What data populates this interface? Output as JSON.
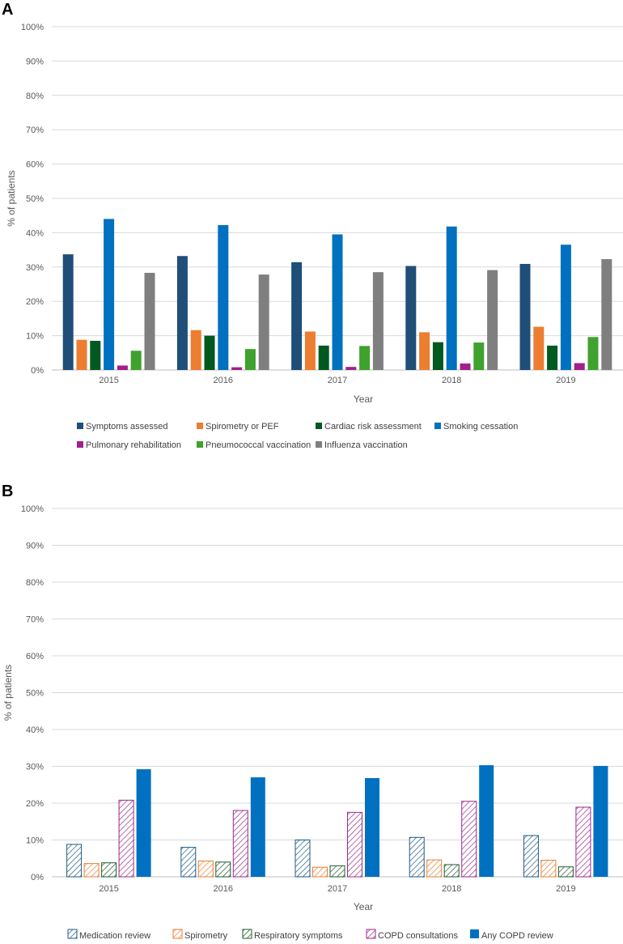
{
  "chart_data": [
    {
      "panel_label": "A",
      "type": "bar",
      "title": "",
      "xlabel": "Year",
      "ylabel": "% of patients",
      "categories": [
        "2015",
        "2016",
        "2017",
        "2018",
        "2019"
      ],
      "ylim": [
        0,
        100
      ],
      "y_ticks": [
        0,
        10,
        20,
        30,
        40,
        50,
        60,
        70,
        80,
        90,
        100
      ],
      "y_tick_suffix": "%",
      "grid": true,
      "legend_position": "bottom",
      "series": [
        {
          "name": "Symptoms assessed",
          "color": "#1f4e79",
          "pattern": "solid",
          "values": [
            33.7,
            33.2,
            31.4,
            30.3,
            30.9
          ]
        },
        {
          "name": "Spirometry or PEF",
          "color": "#ed7d31",
          "pattern": "solid",
          "values": [
            8.8,
            11.6,
            11.2,
            11.0,
            12.6
          ]
        },
        {
          "name": "Cardiac risk assessment",
          "color": "#00591f",
          "pattern": "solid",
          "values": [
            8.5,
            10.0,
            7.1,
            8.1,
            7.1
          ]
        },
        {
          "name": "Smoking cessation",
          "color": "#0070c0",
          "pattern": "solid",
          "values": [
            44.0,
            42.2,
            39.5,
            41.8,
            36.5
          ]
        },
        {
          "name": "Pulmonary rehabilitation",
          "color": "#a0208e",
          "pattern": "solid",
          "values": [
            1.3,
            0.8,
            0.9,
            1.9,
            2.0
          ]
        },
        {
          "name": "Pneumococcal vaccination",
          "color": "#3fa12e",
          "pattern": "solid",
          "values": [
            5.6,
            6.1,
            7.0,
            8.0,
            9.6
          ]
        },
        {
          "name": "Influenza vaccination",
          "color": "#7f7f7f",
          "pattern": "solid",
          "values": [
            28.3,
            27.8,
            28.5,
            29.1,
            32.3
          ]
        }
      ]
    },
    {
      "panel_label": "B",
      "type": "bar",
      "title": "",
      "xlabel": "Year",
      "ylabel": "% of patients",
      "categories": [
        "2015",
        "2016",
        "2017",
        "2018",
        "2019"
      ],
      "ylim": [
        0,
        100
      ],
      "y_ticks": [
        0,
        10,
        20,
        30,
        40,
        50,
        60,
        70,
        80,
        90,
        100
      ],
      "y_tick_suffix": "%",
      "grid": true,
      "legend_position": "bottom",
      "series": [
        {
          "name": "Medication review",
          "color": "#1f5a85",
          "pattern": "hatch",
          "values": [
            8.8,
            8.0,
            10.0,
            10.7,
            11.2
          ]
        },
        {
          "name": "Spirometry",
          "color": "#ed7d31",
          "pattern": "hatch",
          "values": [
            3.6,
            4.3,
            2.6,
            4.6,
            4.5
          ]
        },
        {
          "name": "Respiratory symptoms",
          "color": "#1e5c2a",
          "pattern": "hatch",
          "values": [
            3.8,
            4.0,
            3.0,
            3.3,
            2.7
          ]
        },
        {
          "name": "COPD consultations",
          "color": "#9c2a8a",
          "pattern": "hatch",
          "values": [
            20.8,
            18.0,
            17.5,
            20.5,
            18.9
          ]
        },
        {
          "name": "Any COPD review",
          "color": "#0070c0",
          "pattern": "solid",
          "values": [
            29.2,
            27.0,
            26.8,
            30.3,
            30.1
          ]
        }
      ]
    }
  ]
}
